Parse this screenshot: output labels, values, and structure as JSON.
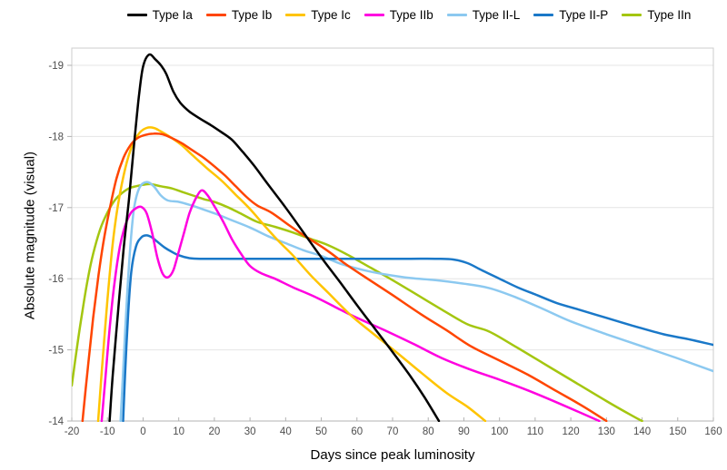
{
  "chart_data": {
    "type": "line",
    "title": "",
    "xlabel": "Days since peak luminosity",
    "ylabel": "Absolute magnitude (visual)",
    "xlim": [
      -20,
      160
    ],
    "ylim": [
      -14,
      -19.24
    ],
    "x_ticks": [
      -20,
      -10,
      0,
      10,
      20,
      30,
      40,
      50,
      60,
      70,
      80,
      90,
      100,
      110,
      120,
      130,
      140,
      150,
      160
    ],
    "y_ticks": [
      -19,
      -18,
      -17,
      -16,
      -15,
      -14
    ],
    "grid": "horizontal",
    "legend_position": "top",
    "colors": {
      "grid": "#e4e4e4",
      "border": "#cccccc",
      "axis": "#b3b3b3",
      "tick_text": "#4d4d4d"
    },
    "draw_order": [
      "Type IIn",
      "Type II-L",
      "Type II-P",
      "Type IIb",
      "Type Ic",
      "Type Ib",
      "Type Ia"
    ],
    "series": [
      {
        "name": "Type Ia",
        "color": "#000000",
        "points": [
          [
            -9.4,
            -14
          ],
          [
            -8.5,
            -14.65
          ],
          [
            -7,
            -15.55
          ],
          [
            -5.5,
            -16.4
          ],
          [
            -4,
            -17.1
          ],
          [
            -2.5,
            -17.9
          ],
          [
            -1.2,
            -18.55
          ],
          [
            0,
            -18.98
          ],
          [
            1.7,
            -19.15
          ],
          [
            3.5,
            -19.08
          ],
          [
            5,
            -19.0
          ],
          [
            6.5,
            -18.88
          ],
          [
            8.5,
            -18.63
          ],
          [
            10.5,
            -18.47
          ],
          [
            13,
            -18.35
          ],
          [
            16,
            -18.25
          ],
          [
            19,
            -18.16
          ],
          [
            22,
            -18.06
          ],
          [
            25,
            -17.95
          ],
          [
            28,
            -17.78
          ],
          [
            31,
            -17.6
          ],
          [
            35,
            -17.33
          ],
          [
            40,
            -17.0
          ],
          [
            45,
            -16.65
          ],
          [
            50,
            -16.3
          ],
          [
            55,
            -15.97
          ],
          [
            60,
            -15.63
          ],
          [
            65,
            -15.3
          ],
          [
            70,
            -14.97
          ],
          [
            75,
            -14.63
          ],
          [
            79,
            -14.33
          ],
          [
            83,
            -14
          ]
        ]
      },
      {
        "name": "Type Ib",
        "color": "#ff4500",
        "points": [
          [
            -17,
            -14
          ],
          [
            -15.5,
            -14.75
          ],
          [
            -14,
            -15.45
          ],
          [
            -12.5,
            -16.05
          ],
          [
            -11,
            -16.55
          ],
          [
            -9.5,
            -16.95
          ],
          [
            -7.5,
            -17.4
          ],
          [
            -5.5,
            -17.7
          ],
          [
            -3.5,
            -17.88
          ],
          [
            -1.5,
            -17.98
          ],
          [
            0.5,
            -18.02
          ],
          [
            3,
            -18.04
          ],
          [
            5.5,
            -18.03
          ],
          [
            8,
            -17.98
          ],
          [
            11,
            -17.9
          ],
          [
            14,
            -17.8
          ],
          [
            17,
            -17.7
          ],
          [
            20,
            -17.58
          ],
          [
            23,
            -17.45
          ],
          [
            26,
            -17.3
          ],
          [
            29,
            -17.15
          ],
          [
            32,
            -17.03
          ],
          [
            36,
            -16.93
          ],
          [
            41,
            -16.75
          ],
          [
            46,
            -16.58
          ],
          [
            51,
            -16.42
          ],
          [
            57,
            -16.2
          ],
          [
            63,
            -16.0
          ],
          [
            70,
            -15.77
          ],
          [
            78,
            -15.5
          ],
          [
            85,
            -15.28
          ],
          [
            92,
            -15.05
          ],
          [
            100,
            -14.85
          ],
          [
            108,
            -14.65
          ],
          [
            116,
            -14.42
          ],
          [
            123,
            -14.22
          ],
          [
            130,
            -14
          ]
        ]
      },
      {
        "name": "Type Ic",
        "color": "#ffc400",
        "points": [
          [
            -12.6,
            -14
          ],
          [
            -11.5,
            -14.75
          ],
          [
            -10,
            -15.7
          ],
          [
            -8.5,
            -16.5
          ],
          [
            -7,
            -17.05
          ],
          [
            -5,
            -17.55
          ],
          [
            -3,
            -17.88
          ],
          [
            -1,
            -18.05
          ],
          [
            1,
            -18.12
          ],
          [
            3,
            -18.12
          ],
          [
            5,
            -18.07
          ],
          [
            8,
            -17.98
          ],
          [
            11,
            -17.87
          ],
          [
            14,
            -17.73
          ],
          [
            18,
            -17.55
          ],
          [
            22,
            -17.38
          ],
          [
            26,
            -17.18
          ],
          [
            30,
            -16.98
          ],
          [
            34,
            -16.75
          ],
          [
            38,
            -16.53
          ],
          [
            42,
            -16.33
          ],
          [
            47,
            -16.05
          ],
          [
            52,
            -15.8
          ],
          [
            58,
            -15.5
          ],
          [
            64,
            -15.25
          ],
          [
            71,
            -14.97
          ],
          [
            78,
            -14.68
          ],
          [
            85,
            -14.4
          ],
          [
            91,
            -14.2
          ],
          [
            96,
            -14
          ]
        ]
      },
      {
        "name": "Type IIb",
        "color": "#ff00e0",
        "points": [
          [
            -11.6,
            -14
          ],
          [
            -10.5,
            -14.65
          ],
          [
            -9.2,
            -15.4
          ],
          [
            -8,
            -15.95
          ],
          [
            -6.5,
            -16.45
          ],
          [
            -5,
            -16.75
          ],
          [
            -3.5,
            -16.92
          ],
          [
            -2,
            -16.99
          ],
          [
            -0.5,
            -17.01
          ],
          [
            1,
            -16.92
          ],
          [
            2.5,
            -16.65
          ],
          [
            4,
            -16.3
          ],
          [
            5.5,
            -16.07
          ],
          [
            7,
            -16.02
          ],
          [
            8.5,
            -16.12
          ],
          [
            10,
            -16.38
          ],
          [
            11.5,
            -16.65
          ],
          [
            13,
            -16.92
          ],
          [
            14.5,
            -17.1
          ],
          [
            16.3,
            -17.24
          ],
          [
            18,
            -17.18
          ],
          [
            20,
            -17.02
          ],
          [
            22.5,
            -16.8
          ],
          [
            25,
            -16.55
          ],
          [
            27.5,
            -16.35
          ],
          [
            30,
            -16.18
          ],
          [
            33,
            -16.08
          ],
          [
            37,
            -16.0
          ],
          [
            42,
            -15.88
          ],
          [
            48,
            -15.75
          ],
          [
            54,
            -15.6
          ],
          [
            60,
            -15.45
          ],
          [
            68,
            -15.27
          ],
          [
            76,
            -15.08
          ],
          [
            84,
            -14.88
          ],
          [
            92,
            -14.72
          ],
          [
            100,
            -14.58
          ],
          [
            108,
            -14.43
          ],
          [
            118,
            -14.22
          ],
          [
            128,
            -14
          ]
        ]
      },
      {
        "name": "Type II-L",
        "color": "#8cc9f0",
        "points": [
          [
            -6.3,
            -14
          ],
          [
            -5.5,
            -14.8
          ],
          [
            -4.5,
            -15.75
          ],
          [
            -3.5,
            -16.5
          ],
          [
            -2.5,
            -17.0
          ],
          [
            -1,
            -17.28
          ],
          [
            1,
            -17.36
          ],
          [
            3,
            -17.3
          ],
          [
            5,
            -17.17
          ],
          [
            7,
            -17.1
          ],
          [
            10,
            -17.08
          ],
          [
            13,
            -17.04
          ],
          [
            16,
            -16.99
          ],
          [
            20,
            -16.92
          ],
          [
            25,
            -16.82
          ],
          [
            30,
            -16.72
          ],
          [
            35,
            -16.6
          ],
          [
            40,
            -16.5
          ],
          [
            45,
            -16.4
          ],
          [
            50,
            -16.32
          ],
          [
            56,
            -16.2
          ],
          [
            62,
            -16.12
          ],
          [
            68,
            -16.06
          ],
          [
            75,
            -16.01
          ],
          [
            82,
            -15.98
          ],
          [
            90,
            -15.93
          ],
          [
            97,
            -15.87
          ],
          [
            104,
            -15.75
          ],
          [
            112,
            -15.58
          ],
          [
            120,
            -15.4
          ],
          [
            130,
            -15.22
          ],
          [
            140,
            -15.05
          ],
          [
            150,
            -14.88
          ],
          [
            160,
            -14.7
          ]
        ]
      },
      {
        "name": "Type II-P",
        "color": "#1a78c8",
        "points": [
          [
            -5.6,
            -14
          ],
          [
            -5,
            -14.7
          ],
          [
            -4.2,
            -15.5
          ],
          [
            -3.3,
            -16.1
          ],
          [
            -2,
            -16.45
          ],
          [
            -0.5,
            -16.58
          ],
          [
            1,
            -16.61
          ],
          [
            2.5,
            -16.58
          ],
          [
            4,
            -16.52
          ],
          [
            6,
            -16.44
          ],
          [
            8,
            -16.38
          ],
          [
            10,
            -16.33
          ],
          [
            13,
            -16.29
          ],
          [
            16,
            -16.28
          ],
          [
            25,
            -16.28
          ],
          [
            35,
            -16.28
          ],
          [
            45,
            -16.28
          ],
          [
            55,
            -16.28
          ],
          [
            65,
            -16.28
          ],
          [
            75,
            -16.28
          ],
          [
            82,
            -16.28
          ],
          [
            87,
            -16.27
          ],
          [
            91,
            -16.22
          ],
          [
            95,
            -16.12
          ],
          [
            100,
            -16.0
          ],
          [
            105,
            -15.88
          ],
          [
            110,
            -15.78
          ],
          [
            116,
            -15.66
          ],
          [
            122,
            -15.57
          ],
          [
            130,
            -15.45
          ],
          [
            138,
            -15.33
          ],
          [
            146,
            -15.22
          ],
          [
            153,
            -15.15
          ],
          [
            160,
            -15.07
          ]
        ]
      },
      {
        "name": "Type IIn",
        "color": "#a4c610",
        "points": [
          [
            -20,
            -14.5
          ],
          [
            -18.5,
            -15.05
          ],
          [
            -17,
            -15.55
          ],
          [
            -15.5,
            -16.0
          ],
          [
            -14,
            -16.35
          ],
          [
            -12,
            -16.7
          ],
          [
            -10,
            -16.93
          ],
          [
            -8,
            -17.1
          ],
          [
            -6,
            -17.2
          ],
          [
            -4,
            -17.27
          ],
          [
            -2,
            -17.3
          ],
          [
            0,
            -17.32
          ],
          [
            2,
            -17.33
          ],
          [
            5,
            -17.3
          ],
          [
            8,
            -17.27
          ],
          [
            11,
            -17.22
          ],
          [
            14,
            -17.17
          ],
          [
            17,
            -17.12
          ],
          [
            20,
            -17.08
          ],
          [
            24,
            -17.0
          ],
          [
            28,
            -16.9
          ],
          [
            32,
            -16.8
          ],
          [
            37,
            -16.73
          ],
          [
            42,
            -16.65
          ],
          [
            47,
            -16.56
          ],
          [
            52,
            -16.47
          ],
          [
            58,
            -16.32
          ],
          [
            64,
            -16.15
          ],
          [
            70,
            -15.98
          ],
          [
            77,
            -15.77
          ],
          [
            84,
            -15.56
          ],
          [
            91,
            -15.36
          ],
          [
            97,
            -15.26
          ],
          [
            104,
            -15.06
          ],
          [
            112,
            -14.82
          ],
          [
            120,
            -14.58
          ],
          [
            130,
            -14.28
          ],
          [
            137,
            -14.08
          ],
          [
            140,
            -14
          ]
        ]
      }
    ]
  }
}
